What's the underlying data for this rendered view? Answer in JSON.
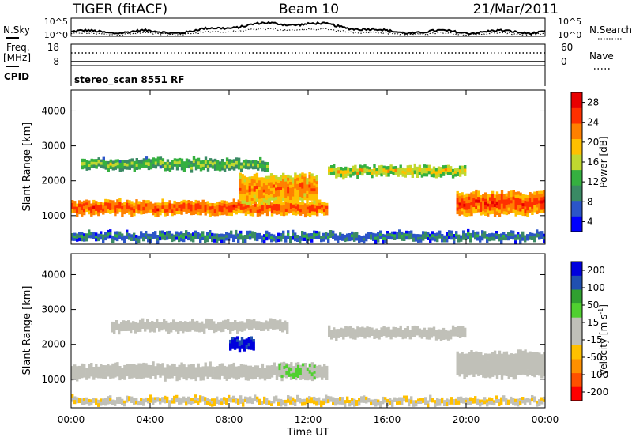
{
  "header": {
    "title_left": "TIGER (fitACF)",
    "title_center": "Beam 10",
    "title_right": "21/Mar/2011"
  },
  "top_panels": {
    "nsky_label": "N.Sky",
    "nsky_ticks": [
      "10^5",
      "10^0"
    ],
    "nsearch_label": "N.Search",
    "nsearch_ticks": [
      "10^5",
      "10^0"
    ],
    "freq_label": "Freq.",
    "freq_unit": "[MHz]",
    "freq_ticks": [
      "18",
      "8"
    ],
    "nave_label": "Nave",
    "nave_ticks": [
      "60",
      "0"
    ],
    "cpid_label": "CPID",
    "cpid_value": "stereo_scan 8551 RF"
  },
  "chart_data": [
    {
      "type": "heatmap",
      "title": "",
      "xlabel": "",
      "ylabel": "Slant Range [km]",
      "x_ticks": [
        "00:00",
        "04:00",
        "08:00",
        "12:00",
        "16:00",
        "20:00",
        "00:00"
      ],
      "xlim_hours": [
        0,
        24
      ],
      "y_ticks": [
        "4000",
        "3000",
        "2000",
        "1000"
      ],
      "ylim_km": [
        180,
        4600
      ],
      "colorbar": {
        "label": "Power [dB]",
        "ticks": [
          "28",
          "24",
          "20",
          "16",
          "12",
          "8",
          "4"
        ],
        "range": [
          0,
          30
        ],
        "colors": [
          "#0000ff",
          "#2b55c8",
          "#3a8a64",
          "#35b040",
          "#c0d830",
          "#ffc000",
          "#ff8000",
          "#ff3000",
          "#e80000"
        ]
      },
      "bands": [
        {
          "name": "main echo",
          "start_h": 0,
          "end_h": 13,
          "range_km": [
            1000,
            1450
          ],
          "power_db": 27
        },
        {
          "name": "upper scatter",
          "start_h": 0.5,
          "end_h": 10,
          "range_km": [
            2300,
            2650
          ],
          "power_db": 14
        },
        {
          "name": "rising arc",
          "start_h": 8.5,
          "end_h": 12.5,
          "range_km": [
            1350,
            2200
          ],
          "power_db": 24
        },
        {
          "name": "midday band",
          "start_h": 13,
          "end_h": 20,
          "range_km": [
            2100,
            2450
          ],
          "power_db": 18
        },
        {
          "name": "evening echo",
          "start_h": 19.5,
          "end_h": 24,
          "range_km": [
            1000,
            1700
          ],
          "power_db": 27
        },
        {
          "name": "ground clutter",
          "start_h": 0,
          "end_h": 24,
          "range_km": [
            250,
            550
          ],
          "power_db": 9
        }
      ]
    },
    {
      "type": "heatmap",
      "title": "",
      "xlabel": "Time UT",
      "ylabel": "Slant Range [km]",
      "x_ticks": [
        "00:00",
        "04:00",
        "08:00",
        "12:00",
        "16:00",
        "20:00",
        "00:00"
      ],
      "xlim_hours": [
        0,
        24
      ],
      "y_ticks": [
        "4000",
        "3000",
        "2000",
        "1000"
      ],
      "ylim_km": [
        180,
        4600
      ],
      "colorbar": {
        "label": "Velocity [m s^-1]",
        "label_main": "Velocity [m s",
        "label_exp": "-1",
        "label_end": "]",
        "ticks": [
          "200",
          "100",
          "50",
          "15",
          "-15",
          "-50",
          "-100",
          "-200"
        ],
        "range": [
          -250,
          250
        ],
        "colors": [
          "#ff0000",
          "#ff5000",
          "#ff9000",
          "#ffc000",
          "#c0c0b8",
          "#c0c0b8",
          "#50d030",
          "#30a030",
          "#2050b0",
          "#0000dd"
        ]
      },
      "bands": [
        {
          "name": "ground scatter main",
          "start_h": 0,
          "end_h": 13,
          "range_km": [
            1000,
            1450
          ],
          "velocity": 0
        },
        {
          "name": "ground scatter upper",
          "start_h": 2,
          "end_h": 11,
          "range_km": [
            2350,
            2700
          ],
          "velocity": 0
        },
        {
          "name": "afternoon ground scatter",
          "start_h": 13,
          "end_h": 20,
          "range_km": [
            2150,
            2500
          ],
          "velocity": 0
        },
        {
          "name": "evening ground scatter",
          "start_h": 19.5,
          "end_h": 24,
          "range_km": [
            1050,
            1800
          ],
          "velocity": 0
        },
        {
          "name": "positive velocity patch",
          "start_h": 10.5,
          "end_h": 12.5,
          "range_km": [
            1000,
            1450
          ],
          "velocity": 40
        },
        {
          "name": "strong positive patch",
          "start_h": 8,
          "end_h": 9.3,
          "range_km": [
            1800,
            2200
          ],
          "velocity": 220
        },
        {
          "name": "near-range negative",
          "start_h": 0,
          "end_h": 24,
          "range_km": [
            250,
            500
          ],
          "velocity": -40
        }
      ]
    }
  ]
}
